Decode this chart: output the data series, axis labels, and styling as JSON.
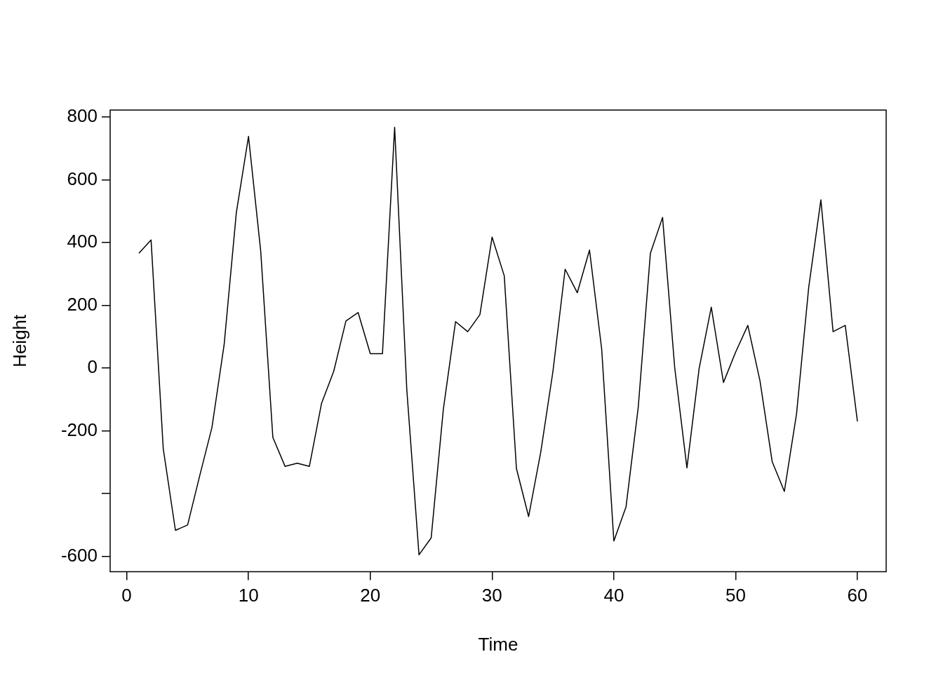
{
  "chart_data": {
    "type": "line",
    "xlabel": "Time",
    "ylabel": "Height",
    "x": [
      1,
      2,
      3,
      4,
      5,
      6,
      7,
      8,
      9,
      10,
      11,
      12,
      13,
      14,
      15,
      16,
      17,
      18,
      19,
      20,
      21,
      22,
      23,
      24,
      25,
      26,
      27,
      28,
      29,
      30,
      31,
      32,
      33,
      34,
      35,
      36,
      37,
      38,
      39,
      40,
      41,
      42,
      43,
      44,
      45,
      46,
      47,
      48,
      49,
      50,
      51,
      52,
      53,
      54,
      55,
      56,
      57,
      58,
      59,
      60
    ],
    "series": [
      {
        "color": "#000000",
        "values": [
          366,
          408,
          -257,
          -517,
          -500,
          -342,
          -189,
          75,
          495,
          738,
          374,
          -221,
          -313,
          -303,
          -313,
          -112,
          -10,
          150,
          177,
          46,
          46,
          767,
          -70,
          -595,
          -541,
          -131,
          148,
          116,
          170,
          417,
          294,
          -320,
          -473,
          -267,
          -10,
          315,
          240,
          376,
          61,
          -551,
          -442,
          -126,
          366,
          480,
          0,
          -318,
          -2,
          194,
          -46,
          51,
          136,
          -41,
          -298,
          -393,
          -146,
          257,
          536,
          116,
          136,
          -170
        ]
      }
    ],
    "xlim": [
      -1.36,
      62.36
    ],
    "ylim": [
      -649,
      822
    ],
    "xticks": [
      0,
      10,
      20,
      30,
      40,
      50,
      60
    ],
    "yticks": [
      -600,
      {
        "value": -400,
        "label": null
      },
      -200,
      0,
      200,
      400,
      600,
      800
    ],
    "grid": false,
    "legend": false,
    "marker": "none",
    "line_style": "solid"
  }
}
